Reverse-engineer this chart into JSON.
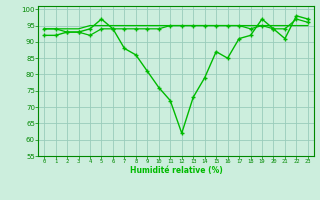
{
  "xlabel": "Humidité relative (%)",
  "bg_color": "#cceedd",
  "grid_color": "#99ccbb",
  "line_color": "#00bb00",
  "xlim": [
    -0.5,
    23.5
  ],
  "ylim": [
    55,
    101
  ],
  "yticks": [
    55,
    60,
    65,
    70,
    75,
    80,
    85,
    90,
    95,
    100
  ],
  "xticks": [
    0,
    1,
    2,
    3,
    4,
    5,
    6,
    7,
    8,
    9,
    10,
    11,
    12,
    13,
    14,
    15,
    16,
    17,
    18,
    19,
    20,
    21,
    22,
    23
  ],
  "line1_x": [
    0,
    1,
    2,
    3,
    4,
    5,
    6,
    7,
    8,
    9,
    10,
    11,
    12,
    13,
    14,
    15,
    16,
    17,
    18,
    19,
    20,
    21,
    22,
    23
  ],
  "line1_y": [
    92,
    92,
    93,
    93,
    94,
    97,
    94,
    88,
    86,
    81,
    76,
    72,
    62,
    73,
    79,
    87,
    85,
    91,
    92,
    97,
    94,
    91,
    98,
    97
  ],
  "line2_x": [
    0,
    1,
    2,
    3,
    4,
    5,
    6,
    7,
    8,
    9,
    10,
    11,
    12,
    13,
    14,
    15,
    16,
    17,
    18,
    19,
    20,
    21,
    22,
    23
  ],
  "line2_y": [
    94,
    94,
    94,
    94,
    95,
    95,
    95,
    95,
    95,
    95,
    95,
    95,
    95,
    95,
    95,
    95,
    95,
    95,
    95,
    95,
    95,
    95,
    95,
    95
  ],
  "line3_x": [
    0,
    1,
    2,
    3,
    4,
    5,
    6,
    7,
    8,
    9,
    10,
    11,
    12,
    13,
    14,
    15,
    16,
    17,
    18,
    19,
    20,
    21,
    22,
    23
  ],
  "line3_y": [
    94,
    94,
    93,
    93,
    92,
    94,
    94,
    94,
    94,
    94,
    94,
    95,
    95,
    95,
    95,
    95,
    95,
    95,
    94,
    95,
    94,
    94,
    97,
    96
  ]
}
